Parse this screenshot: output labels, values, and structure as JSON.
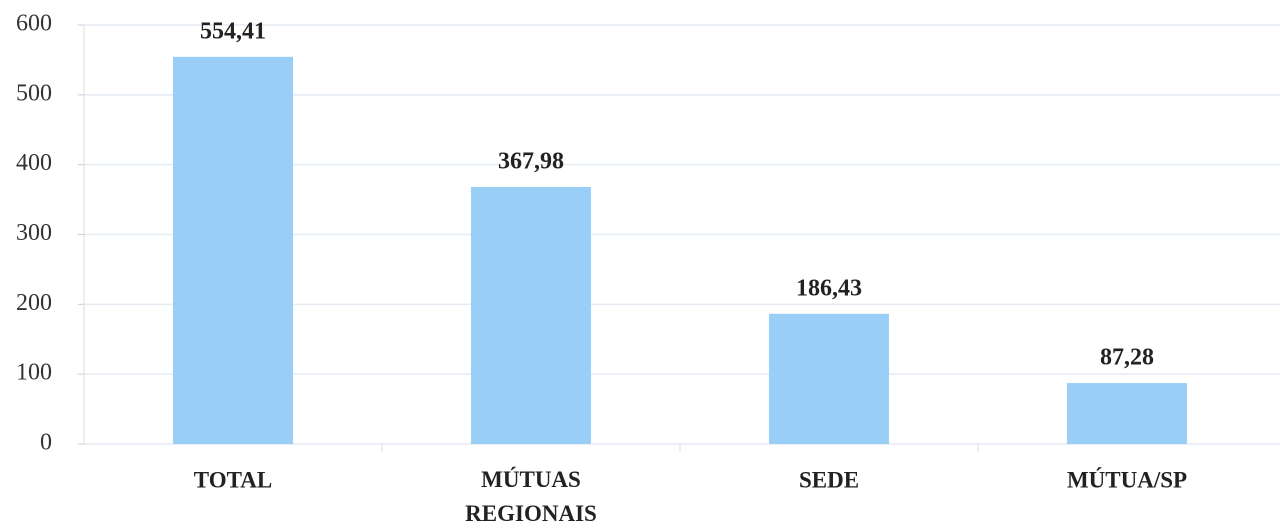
{
  "chart_data": {
    "type": "bar",
    "categories": [
      "TOTAL",
      "MÚTUAS REGIONAIS",
      "SEDE",
      "MÚTUA/SP"
    ],
    "values": [
      554.41,
      367.98,
      186.43,
      87.28
    ],
    "value_labels": [
      "554,41",
      "367,98",
      "186,43",
      "87,28"
    ],
    "color": "#99cff7",
    "ylim": [
      0,
      600
    ],
    "yticks": [
      0,
      100,
      200,
      300,
      400,
      500,
      600
    ],
    "grid": true
  }
}
